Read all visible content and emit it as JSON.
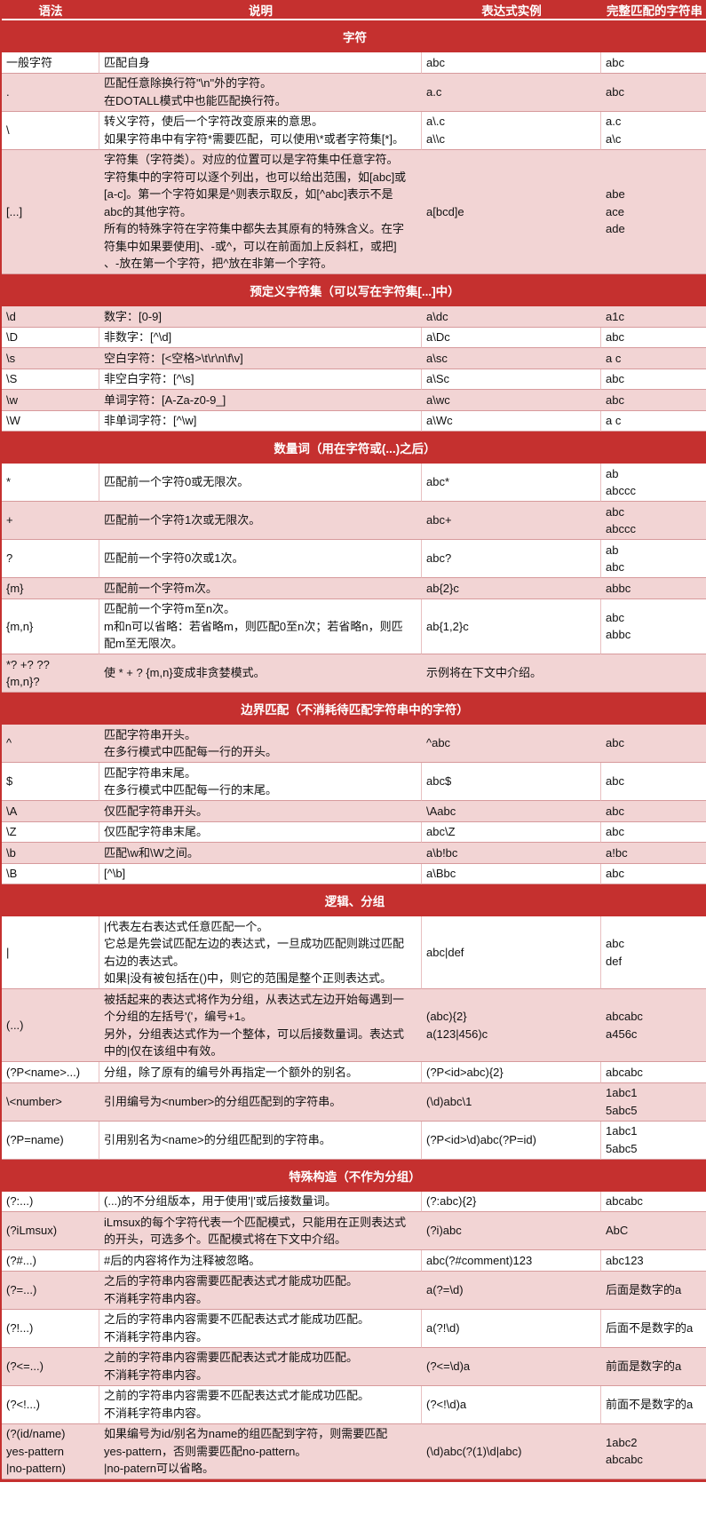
{
  "colors": {
    "header_red": "#C5302F",
    "row_pink": "#F2D4D4",
    "row_white": "#FFFFFF",
    "border": "#D79A9C",
    "text": "#111111"
  },
  "table": {
    "columns": [
      "语法",
      "说明",
      "表达式实例",
      "完整匹配的字符串"
    ],
    "sections": [
      {
        "title": "字符",
        "rows": [
          {
            "syntax": [
              "一般字符"
            ],
            "description": [
              "匹配自身"
            ],
            "example": [
              "abc"
            ],
            "match": [
              "abc"
            ]
          },
          {
            "syntax": [
              "."
            ],
            "description": [
              "匹配任意除换行符\"\\n\"外的字符。",
              "在DOTALL模式中也能匹配换行符。"
            ],
            "example": [
              "a.c"
            ],
            "match": [
              "abc"
            ]
          },
          {
            "syntax": [
              "\\"
            ],
            "description": [
              "转义字符，使后一个字符改变原来的意思。",
              "如果字符串中有字符*需要匹配，可以使用\\*或者字符集[*]。"
            ],
            "example": [
              "a\\.c",
              "a\\\\c"
            ],
            "match": [
              "a.c",
              "a\\c"
            ]
          },
          {
            "syntax": [
              "[...]"
            ],
            "description": [
              "字符集（字符类）。对应的位置可以是字符集中任意字符。",
              "字符集中的字符可以逐个列出，也可以给出范围，如[abc]或",
              "[a-c]。第一个字符如果是^则表示取反，如[^abc]表示不是",
              "abc的其他字符。",
              "所有的特殊字符在字符集中都失去其原有的特殊含义。在字",
              "符集中如果要使用]、-或^，可以在前面加上反斜杠，或把]",
              "、-放在第一个字符，把^放在非第一个字符。"
            ],
            "example": [
              "a[bcd]e"
            ],
            "match": [
              "abe",
              "ace",
              "ade"
            ]
          }
        ]
      },
      {
        "title": "预定义字符集（可以写在字符集[...]中）",
        "rows": [
          {
            "syntax": [
              "\\d"
            ],
            "description": [
              "数字：[0-9]"
            ],
            "example": [
              "a\\dc"
            ],
            "match": [
              "a1c"
            ]
          },
          {
            "syntax": [
              "\\D"
            ],
            "description": [
              "非数字：[^\\d]"
            ],
            "example": [
              "a\\Dc"
            ],
            "match": [
              "abc"
            ]
          },
          {
            "syntax": [
              "\\s"
            ],
            "description": [
              "空白字符：[<空格>\\t\\r\\n\\f\\v]"
            ],
            "example": [
              "a\\sc"
            ],
            "match": [
              "a c"
            ]
          },
          {
            "syntax": [
              "\\S"
            ],
            "description": [
              "非空白字符：[^\\s]"
            ],
            "example": [
              "a\\Sc"
            ],
            "match": [
              "abc"
            ]
          },
          {
            "syntax": [
              "\\w"
            ],
            "description": [
              "单词字符：[A-Za-z0-9_]"
            ],
            "example": [
              "a\\wc"
            ],
            "match": [
              "abc"
            ]
          },
          {
            "syntax": [
              "\\W"
            ],
            "description": [
              "非单词字符：[^\\w]"
            ],
            "example": [
              "a\\Wc"
            ],
            "match": [
              "a c"
            ]
          }
        ]
      },
      {
        "title": "数量词（用在字符或(...)之后）",
        "rows": [
          {
            "syntax": [
              "*"
            ],
            "description": [
              "匹配前一个字符0或无限次。"
            ],
            "example": [
              "abc*"
            ],
            "match": [
              "ab",
              "abccc"
            ]
          },
          {
            "syntax": [
              "+"
            ],
            "description": [
              "匹配前一个字符1次或无限次。"
            ],
            "example": [
              "abc+"
            ],
            "match": [
              "abc",
              "abccc"
            ]
          },
          {
            "syntax": [
              "?"
            ],
            "description": [
              "匹配前一个字符0次或1次。"
            ],
            "example": [
              "abc?"
            ],
            "match": [
              "ab",
              "abc"
            ]
          },
          {
            "syntax": [
              "{m}"
            ],
            "description": [
              "匹配前一个字符m次。"
            ],
            "example": [
              "ab{2}c"
            ],
            "match": [
              "abbc"
            ]
          },
          {
            "syntax": [
              "{m,n}"
            ],
            "description": [
              "匹配前一个字符m至n次。",
              "m和n可以省略：若省略m，则匹配0至n次；若省略n，则匹",
              "配m至无限次。"
            ],
            "example": [
              "ab{1,2}c"
            ],
            "match": [
              "abc",
              "abbc"
            ]
          },
          {
            "syntax": [
              "*? +? ??",
              "{m,n}?"
            ],
            "description": [
              "使 * + ? {m,n}变成非贪婪模式。"
            ],
            "example": [
              "示例将在下文中介绍。"
            ],
            "match": []
          }
        ]
      },
      {
        "title": "边界匹配（不消耗待匹配字符串中的字符）",
        "rows": [
          {
            "syntax": [
              "^"
            ],
            "description": [
              "匹配字符串开头。",
              "在多行模式中匹配每一行的开头。"
            ],
            "example": [
              "^abc"
            ],
            "match": [
              "abc"
            ]
          },
          {
            "syntax": [
              "$"
            ],
            "description": [
              "匹配字符串末尾。",
              "在多行模式中匹配每一行的末尾。"
            ],
            "example": [
              "abc$"
            ],
            "match": [
              "abc"
            ]
          },
          {
            "syntax": [
              "\\A"
            ],
            "description": [
              "仅匹配字符串开头。"
            ],
            "example": [
              "\\Aabc"
            ],
            "match": [
              "abc"
            ]
          },
          {
            "syntax": [
              "\\Z"
            ],
            "description": [
              "仅匹配字符串末尾。"
            ],
            "example": [
              "abc\\Z"
            ],
            "match": [
              "abc"
            ]
          },
          {
            "syntax": [
              "\\b"
            ],
            "description": [
              "匹配\\w和\\W之间。"
            ],
            "example": [
              "a\\b!bc"
            ],
            "match": [
              "a!bc"
            ]
          },
          {
            "syntax": [
              "\\B"
            ],
            "description": [
              "[^\\b]"
            ],
            "example": [
              "a\\Bbc"
            ],
            "match": [
              "abc"
            ]
          }
        ]
      },
      {
        "title": "逻辑、分组",
        "rows": [
          {
            "syntax": [
              "|"
            ],
            "description": [
              "|代表左右表达式任意匹配一个。",
              "它总是先尝试匹配左边的表达式，一旦成功匹配则跳过匹配",
              "右边的表达式。",
              "如果|没有被包括在()中，则它的范围是整个正则表达式。"
            ],
            "example": [
              "abc|def"
            ],
            "match": [
              "abc",
              "def"
            ]
          },
          {
            "syntax": [
              "(...)"
            ],
            "description": [
              "被括起来的表达式将作为分组，从表达式左边开始每遇到一",
              "个分组的左括号'('，编号+1。",
              "另外，分组表达式作为一个整体，可以后接数量词。表达式",
              "中的|仅在该组中有效。"
            ],
            "example": [
              "(abc){2}",
              "a(123|456)c"
            ],
            "match": [
              "abcabc",
              "a456c"
            ]
          },
          {
            "syntax": [
              "(?P<name>...)"
            ],
            "description": [
              "分组，除了原有的编号外再指定一个额外的别名。"
            ],
            "example": [
              "(?P<id>abc){2}"
            ],
            "match": [
              "abcabc"
            ]
          },
          {
            "syntax": [
              "\\<number>"
            ],
            "description": [
              "引用编号为<number>的分组匹配到的字符串。"
            ],
            "example": [
              "(\\d)abc\\1"
            ],
            "match": [
              "1abc1",
              "5abc5"
            ]
          },
          {
            "syntax": [
              "(?P=name)"
            ],
            "description": [
              "引用别名为<name>的分组匹配到的字符串。"
            ],
            "example": [
              "(?P<id>\\d)abc(?P=id)"
            ],
            "match": [
              "1abc1",
              "5abc5"
            ]
          }
        ]
      },
      {
        "title": "特殊构造（不作为分组）",
        "rows": [
          {
            "syntax": [
              "(?:...)"
            ],
            "description": [
              "(...)的不分组版本，用于使用'|'或后接数量词。"
            ],
            "example": [
              "(?:abc){2}"
            ],
            "match": [
              "abcabc"
            ]
          },
          {
            "syntax": [
              "(?iLmsux)"
            ],
            "description": [
              "iLmsux的每个字符代表一个匹配模式，只能用在正则表达式",
              "的开头，可选多个。匹配模式将在下文中介绍。"
            ],
            "example": [
              "(?i)abc"
            ],
            "match": [
              "AbC"
            ]
          },
          {
            "syntax": [
              "(?#...)"
            ],
            "description": [
              "#后的内容将作为注释被忽略。"
            ],
            "example": [
              "abc(?#comment)123"
            ],
            "match": [
              "abc123"
            ]
          },
          {
            "syntax": [
              "(?=...)"
            ],
            "description": [
              "之后的字符串内容需要匹配表达式才能成功匹配。",
              "不消耗字符串内容。"
            ],
            "example": [
              "a(?=\\d)"
            ],
            "match": [
              "后面是数字的a"
            ]
          },
          {
            "syntax": [
              "(?!...)"
            ],
            "description": [
              "之后的字符串内容需要不匹配表达式才能成功匹配。",
              "不消耗字符串内容。"
            ],
            "example": [
              "a(?!\\d)"
            ],
            "match": [
              "后面不是数字的a"
            ]
          },
          {
            "syntax": [
              "(?<=...)"
            ],
            "description": [
              "之前的字符串内容需要匹配表达式才能成功匹配。",
              "不消耗字符串内容。"
            ],
            "example": [
              "(?<=\\d)a"
            ],
            "match": [
              "前面是数字的a"
            ]
          },
          {
            "syntax": [
              "(?<!...)"
            ],
            "description": [
              "之前的字符串内容需要不匹配表达式才能成功匹配。",
              "不消耗字符串内容。"
            ],
            "example": [
              "(?<!\\d)a"
            ],
            "match": [
              "前面不是数字的a"
            ]
          },
          {
            "syntax": [
              "(?(id/name)",
              "yes-pattern",
              "|no-pattern)"
            ],
            "description": [
              "如果编号为id/别名为name的组匹配到字符，则需要匹配",
              "yes-pattern，否则需要匹配no-pattern。",
              "|no-patern可以省略。"
            ],
            "example": [
              "(\\d)abc(?(1)\\d|abc)"
            ],
            "match": [
              "1abc2",
              "abcabc"
            ]
          }
        ]
      }
    ]
  }
}
